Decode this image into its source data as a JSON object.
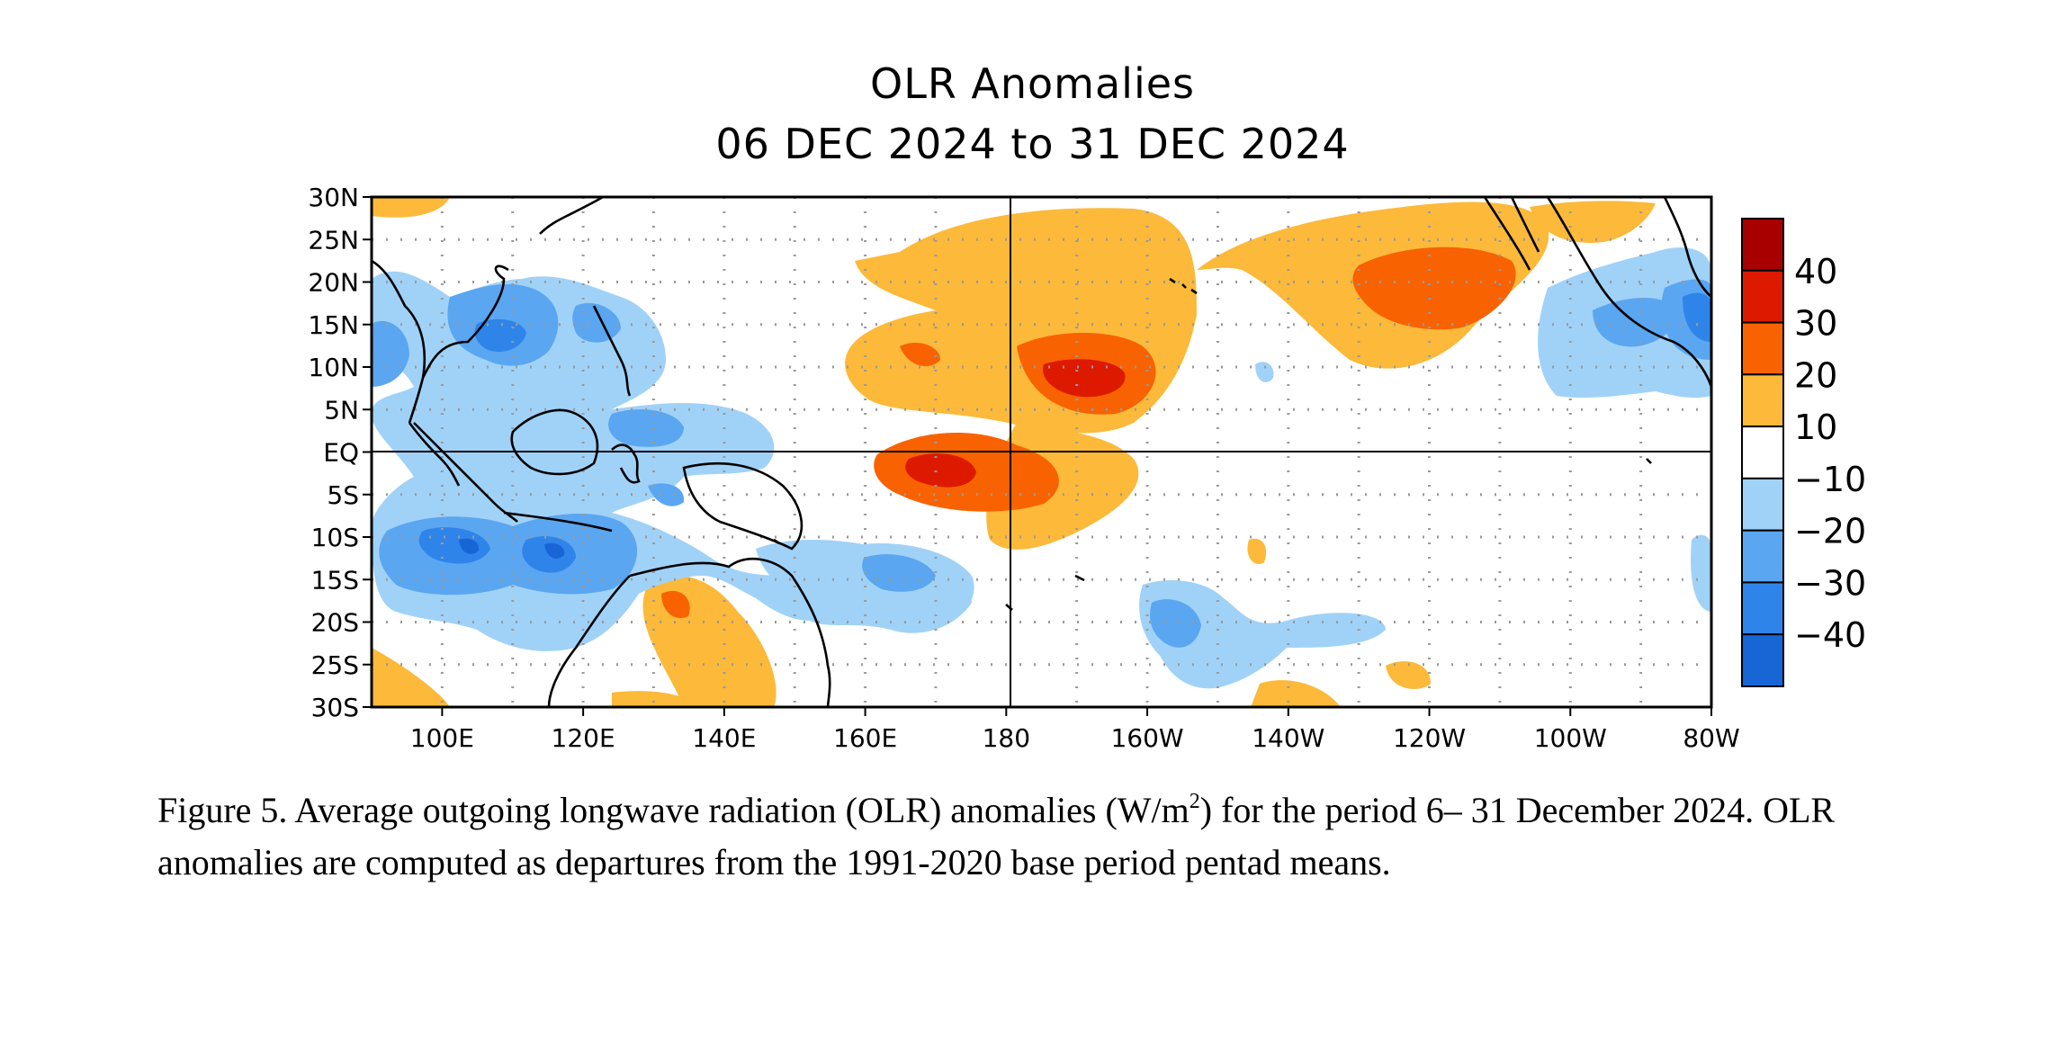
{
  "map": {
    "title_line1": "OLR Anomalies",
    "title_line2": "06 DEC 2024 to 31 DEC 2024",
    "lat_labels": [
      "30N",
      "25N",
      "20N",
      "15N",
      "10N",
      "5N",
      "EQ",
      "5S",
      "10S",
      "15S",
      "20S",
      "25S",
      "30S"
    ],
    "lon_labels": [
      "100E",
      "120E",
      "140E",
      "160E",
      "180",
      "160W",
      "140W",
      "120W",
      "100W",
      "80W"
    ],
    "extent": {
      "lon_min": 90,
      "lon_max": 280,
      "lat_min": -30,
      "lat_max": 30
    },
    "colorbar": {
      "labels": [
        "40",
        "30",
        "20",
        "10",
        "−10",
        "−20",
        "−30",
        "−40"
      ],
      "colors": [
        "#a80000",
        "#dd1a00",
        "#f86200",
        "#fcb93a",
        "#ffffff",
        "#a0d2f8",
        "#5aa6f0",
        "#2f84ea",
        "#1866d6"
      ]
    },
    "colors": {
      "coastline": "#000000",
      "grid_dots": "#9a9a9a"
    }
  },
  "caption": {
    "part1": "Figure 5. Average outgoing longwave radiation (OLR) anomalies (W/m",
    "sup": "2",
    "part2": ") for the period 6– 31 December 2024.  OLR anomalies are computed as departures from the 1991-2020 base period pentad means."
  }
}
